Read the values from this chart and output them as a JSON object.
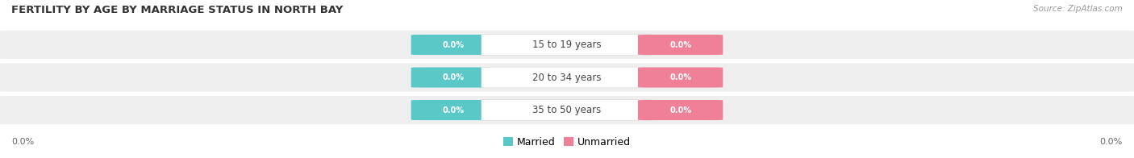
{
  "title": "FERTILITY BY AGE BY MARRIAGE STATUS IN NORTH BAY",
  "source": "Source: ZipAtlas.com",
  "categories": [
    "15 to 19 years",
    "20 to 34 years",
    "35 to 50 years"
  ],
  "married_values": [
    0.0,
    0.0,
    0.0
  ],
  "unmarried_values": [
    0.0,
    0.0,
    0.0
  ],
  "married_color": "#5bc8c8",
  "unmarried_color": "#f08098",
  "row_bg_color": "#efefef",
  "axis_label_left": "0.0%",
  "axis_label_right": "0.0%",
  "title_fontsize": 9.5,
  "source_fontsize": 7.5,
  "label_fontsize": 7,
  "category_fontsize": 8.5,
  "figsize": [
    14.06,
    1.96
  ],
  "dpi": 100
}
